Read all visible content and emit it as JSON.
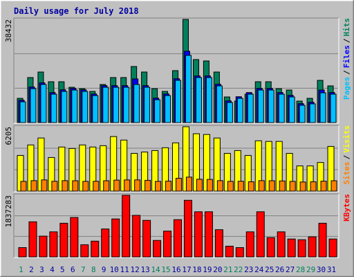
{
  "chart_data": [
    {
      "type": "bar",
      "title": "Daily usage for July 2018",
      "ylim": [
        0,
        38432
      ],
      "yticks": [
        38432
      ],
      "grid": true,
      "legend_separator": "/",
      "series": [
        {
          "name": "Pages",
          "color": "#00c0ff",
          "values": [
            7740,
            12640,
            14190,
            10580,
            11610,
            12120,
            11610,
            10060,
            13160,
            13160,
            13160,
            14190,
            13160,
            8510,
            10060,
            15740,
            25030,
            16770,
            16770,
            13670,
            7480,
            9030,
            10580,
            12120,
            12120,
            10580,
            9550,
            6450,
            6970,
            11090,
            10580
          ]
        },
        {
          "name": "Files",
          "color": "#0000ff",
          "values": [
            8340,
            13240,
            14790,
            11180,
            12210,
            12720,
            12210,
            10660,
            13760,
            13760,
            13760,
            16250,
            13760,
            9110,
            10660,
            16340,
            26570,
            17370,
            17370,
            14270,
            8080,
            9630,
            11180,
            12720,
            12720,
            11180,
            10150,
            7050,
            7570,
            12120,
            11180
          ]
        },
        {
          "name": "Hits",
          "color": "#00805c",
          "values": [
            9030,
            16770,
            18830,
            15220,
            15220,
            13150,
            12640,
            11610,
            14190,
            16770,
            16770,
            20890,
            18830,
            12640,
            11610,
            19350,
            38432,
            23470,
            22960,
            18830,
            9540,
            8000,
            10580,
            15220,
            15220,
            12640,
            12120,
            8000,
            9030,
            15730,
            13670
          ]
        }
      ]
    },
    {
      "type": "bar",
      "ylim": [
        0,
        6205
      ],
      "yticks": [
        6205
      ],
      "grid": true,
      "legend_separator": "/",
      "series": [
        {
          "name": "Sites",
          "color": "#ff8000",
          "values": [
            940,
            1010,
            1080,
            950,
            1010,
            1000,
            940,
            950,
            1000,
            1060,
            1080,
            1080,
            1040,
            940,
            960,
            1240,
            1350,
            1150,
            1130,
            1010,
            940,
            950,
            900,
            1010,
            1000,
            980,
            940,
            880,
            900,
            960,
            1000
          ]
        },
        {
          "name": "Visits",
          "color": "#ffff00",
          "values": [
            3440,
            4450,
            5120,
            3240,
            4250,
            4110,
            4450,
            4250,
            4380,
            5260,
            4920,
            3640,
            3770,
            3910,
            4180,
            4650,
            6205,
            5530,
            5460,
            5120,
            3640,
            3910,
            3440,
            4850,
            4790,
            4790,
            3640,
            2430,
            2430,
            2760,
            4310
          ]
        }
      ]
    },
    {
      "type": "bar",
      "ylim": [
        0,
        1837283
      ],
      "yticks": [
        1837283
      ],
      "grid": true,
      "series": [
        {
          "name": "KBytes",
          "color": "#ff0000",
          "values": [
            277700,
            1046800,
            619600,
            747700,
            1004100,
            1175000,
            363200,
            470000,
            833200,
            1132300,
            1837283,
            1239100,
            1089600,
            491400,
            769100,
            1110900,
            1687800,
            1345900,
            1345900,
            811800,
            320500,
            277700,
            747700,
            1345900,
            576800,
            747700,
            534100,
            512700,
            598200,
            1004100,
            534100
          ]
        }
      ],
      "categories": [
        "1",
        "2",
        "3",
        "4",
        "5",
        "6",
        "7",
        "8",
        "9",
        "10",
        "11",
        "12",
        "13",
        "14",
        "15",
        "16",
        "17",
        "18",
        "19",
        "20",
        "21",
        "22",
        "23",
        "24",
        "25",
        "26",
        "27",
        "28",
        "29",
        "30",
        "31"
      ],
      "category_colors": [
        "#00805c",
        "#0000a0",
        "#0000a0",
        "#0000a0",
        "#0000a0",
        "#0000a0",
        "#00805c",
        "#00805c",
        "#0000a0",
        "#0000a0",
        "#0000a0",
        "#0000a0",
        "#0000a0",
        "#00805c",
        "#00805c",
        "#0000a0",
        "#0000a0",
        "#0000a0",
        "#0000a0",
        "#0000a0",
        "#00805c",
        "#00805c",
        "#0000a0",
        "#0000a0",
        "#0000a0",
        "#0000a0",
        "#0000a0",
        "#00805c",
        "#00805c",
        "#0000a0",
        "#0000a0"
      ]
    }
  ]
}
